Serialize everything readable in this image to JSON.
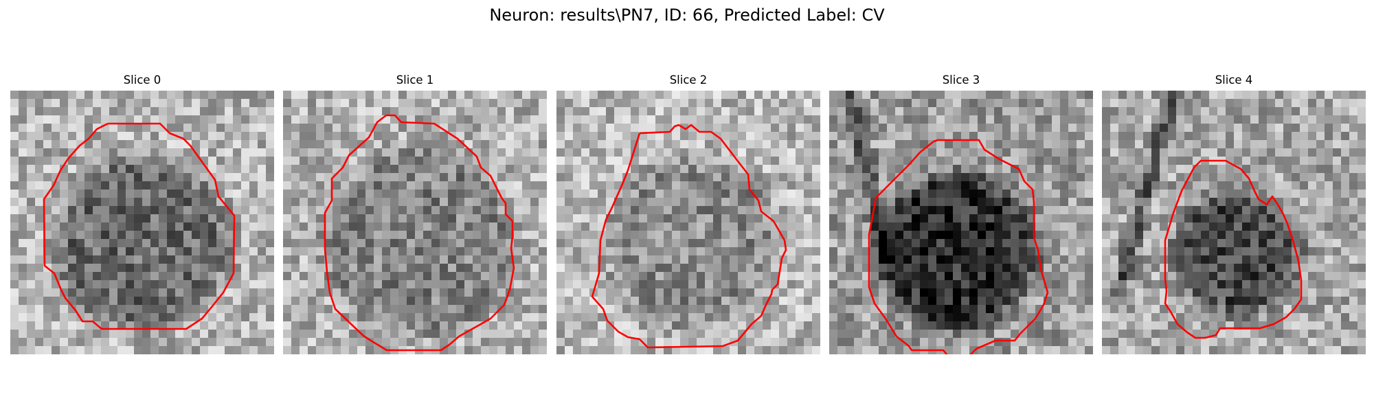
{
  "figure": {
    "title": "Neuron: results\\PN7, ID: 66, Predicted Label: CV",
    "outline_color": "#ff0000"
  },
  "panels": [
    {
      "title": "Slice 0"
    },
    {
      "title": "Slice 1"
    },
    {
      "title": "Slice 2"
    },
    {
      "title": "Slice 3"
    },
    {
      "title": "Slice 4"
    }
  ]
}
